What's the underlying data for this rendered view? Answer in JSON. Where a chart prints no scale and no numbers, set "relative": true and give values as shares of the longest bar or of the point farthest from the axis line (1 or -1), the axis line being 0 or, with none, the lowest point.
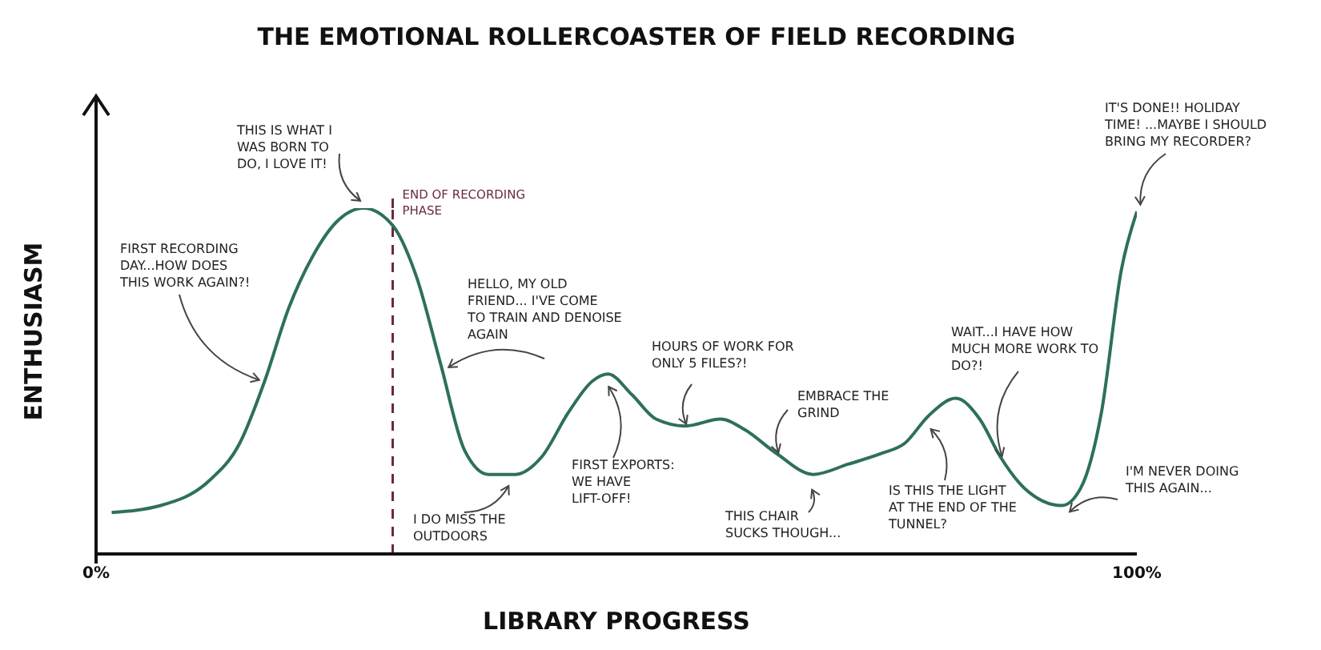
{
  "chart_data": {
    "type": "line",
    "title": "THE EMOTIONAL ROLLERCOASTER OF FIELD RECORDING",
    "xlabel": "LIBRARY PROGRESS",
    "ylabel": "ENTHUSIASM",
    "relative": true,
    "xlim": [
      0,
      100
    ],
    "xticks": [
      {
        "value": 0,
        "label": "0%"
      },
      {
        "value": 100,
        "label": "100%"
      }
    ],
    "grid": false,
    "legend": false,
    "x": [
      1.5,
      6.2,
      10.8,
      13.8,
      16.2,
      18.5,
      20.8,
      23.1,
      25.7,
      28.5,
      30.8,
      33.1,
      35.4,
      37.7,
      40.3,
      42.8,
      45.4,
      47.7,
      49.2,
      51.5,
      53.8,
      56.6,
      60,
      62.3,
      65.4,
      68.9,
      72.3,
      75.4,
      77.7,
      80,
      82.6,
      84.9,
      86.9,
      89.2,
      92.8,
      94.6,
      96.6,
      98.5,
      100
    ],
    "series": [
      {
        "color": "#2e6f5e",
        "values": [
          0.12,
          0.14,
          0.21,
          0.32,
          0.5,
          0.71,
          0.86,
          0.96,
          1,
          0.95,
          0.8,
          0.55,
          0.3,
          0.23,
          0.23,
          0.28,
          0.41,
          0.5,
          0.52,
          0.46,
          0.39,
          0.37,
          0.39,
          0.36,
          0.29,
          0.23,
          0.26,
          0.29,
          0.32,
          0.4,
          0.45,
          0.39,
          0.28,
          0.19,
          0.14,
          0.19,
          0.41,
          0.82,
          0.99
        ]
      }
    ],
    "ref_lines": [
      {
        "axis": "x",
        "value": 28.5,
        "label": "END OF RECORDING PHASE",
        "color": "#6b2a3a",
        "line_style": "dashed"
      }
    ],
    "annotations": [
      {
        "text": "FIRST RECORDING DAY...HOW DOES THIS WORK AGAIN?!",
        "x": 16.2,
        "y": 0.5
      },
      {
        "text": "THIS IS WHAT I WAS BORN TO DO, I LOVE IT!",
        "x": 25.7,
        "y": 1
      },
      {
        "text": "HELLO, MY OLD FRIEND... I'VE COME TO TRAIN AND DENOISE AGAIN",
        "x": 33.1,
        "y": 0.55
      },
      {
        "text": "FIRST EXPORTS: WE HAVE LIFT-OFF!",
        "x": 49.2,
        "y": 0.52
      },
      {
        "text": "I DO MISS THE OUTDOORS",
        "x": 40.3,
        "y": 0.23
      },
      {
        "text": "HOURS OF WORK FOR ONLY 5 FILES?!",
        "x": 56.6,
        "y": 0.37
      },
      {
        "text": "EMBRACE THE GRIND",
        "x": 65.4,
        "y": 0.29
      },
      {
        "text": "THIS CHAIR SUCKS THOUGH...",
        "x": 68.9,
        "y": 0.23
      },
      {
        "text": "IS THIS THE LIGHT AT THE END OF THE TUNNEL?",
        "x": 80,
        "y": 0.4
      },
      {
        "text": "WAIT...I HAVE HOW MUCH MORE WORK TO DO?!",
        "x": 86.9,
        "y": 0.28
      },
      {
        "text": "I'M NEVER DOING THIS AGAIN...",
        "x": 92.8,
        "y": 0.14
      },
      {
        "text": "IT'S DONE!! HOLIDAY TIME! ...MAYBE I SHOULD BRING MY RECORDER?",
        "x": 100,
        "y": 0.99
      }
    ]
  }
}
